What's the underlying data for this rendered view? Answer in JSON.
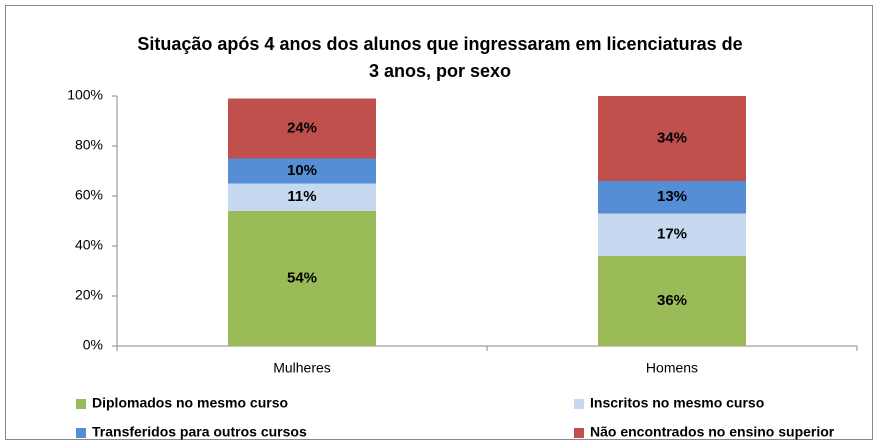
{
  "chart_data": {
    "type": "stacked_bar",
    "title": [
      "Situação após 4 anos dos alunos que ingressaram em licenciaturas de",
      "3 anos, por sexo"
    ],
    "categories": [
      "Mulheres",
      "Homens"
    ],
    "series": [
      {
        "name": "Diplomados no mesmo curso",
        "color": "#9bbb59",
        "values": [
          54,
          36
        ],
        "value_labels": [
          "54%",
          "36%"
        ]
      },
      {
        "name": "Inscritos no mesmo curso",
        "color": "#c6d9f1",
        "values": [
          11,
          17
        ],
        "value_labels": [
          "11%",
          "17%"
        ]
      },
      {
        "name": "Transferidos para outros cursos",
        "color": "#558ed5",
        "values": [
          10,
          13
        ],
        "value_labels": [
          "10%",
          "13%"
        ]
      },
      {
        "name": "Não encontrados no ensino superior",
        "color": "#c0504d",
        "values": [
          24,
          34
        ],
        "value_labels": [
          "24%",
          "34%"
        ]
      }
    ],
    "ylim": [
      0,
      100
    ],
    "yticks": [
      {
        "value": 0,
        "label": "0%"
      },
      {
        "value": 20,
        "label": "20%"
      },
      {
        "value": 40,
        "label": "40%"
      },
      {
        "value": 60,
        "label": "60%"
      },
      {
        "value": 80,
        "label": "80%"
      },
      {
        "value": 100,
        "label": "100%"
      }
    ],
    "legend": "bottom"
  }
}
